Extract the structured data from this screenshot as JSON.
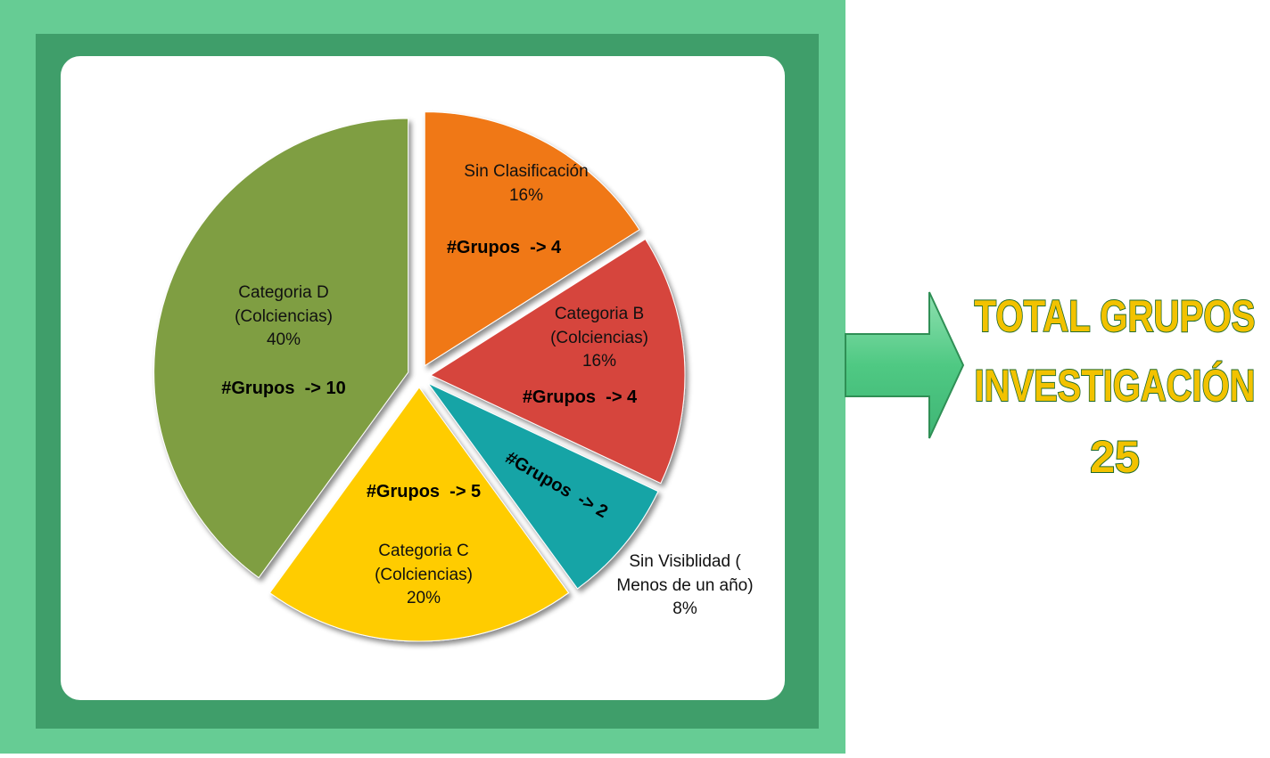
{
  "chart_data": {
    "type": "pie",
    "categories": [
      "Sin Clasificación",
      "Categoria B (Colciencias)",
      "Sin Visiblidad ( Menos de un año)",
      "Categoria C (Colciencias)",
      "Categoria D (Colciencias)"
    ],
    "values": [
      16,
      16,
      8,
      20,
      40
    ],
    "value_labels": [
      "16%",
      "16%",
      "8%",
      "20%",
      "40%"
    ],
    "group_labels": [
      "#Grupos  -> 4",
      "#Grupos  -> 4",
      "#Grupos  -> 2",
      "#Grupos  -> 5",
      "#Grupos  -> 10"
    ],
    "colors": [
      "#f07812",
      "#d6453d",
      "#12a4a6",
      "#ffcc00",
      "#7f9e42"
    ]
  },
  "total": {
    "title_lines": [
      "TOTAL GRUPOS",
      "INVESTIGACIÓN"
    ],
    "value": "25"
  }
}
